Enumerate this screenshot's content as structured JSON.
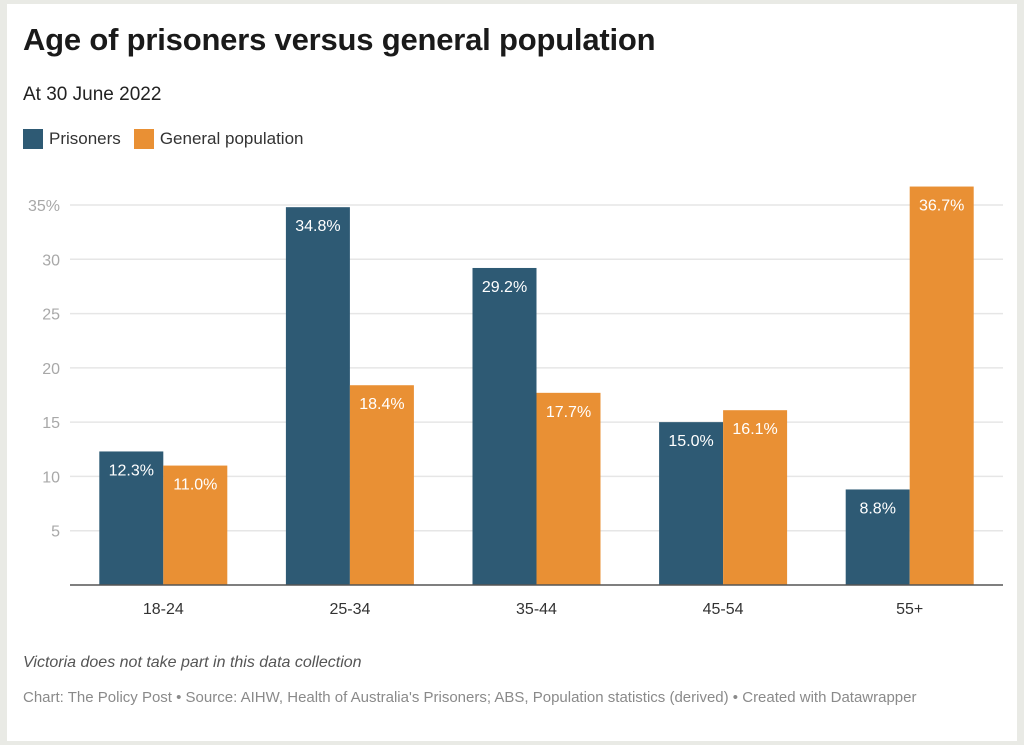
{
  "chart_data": {
    "type": "bar",
    "title": "Age of prisoners versus general population",
    "subtitle": "At 30 June 2022",
    "categories": [
      "18-24",
      "25-34",
      "35-44",
      "45-54",
      "55+"
    ],
    "series": [
      {
        "name": "Prisoners",
        "color": "#2e5a74",
        "values": [
          12.3,
          34.8,
          29.2,
          15.0,
          8.8
        ],
        "labels": [
          "12.3%",
          "34.8%",
          "29.2%",
          "15.0%",
          "8.8%"
        ]
      },
      {
        "name": "General population",
        "color": "#e99034",
        "values": [
          11.0,
          18.4,
          17.7,
          16.1,
          36.7
        ],
        "labels": [
          "11.0%",
          "18.4%",
          "17.7%",
          "16.1%",
          "36.7%"
        ]
      }
    ],
    "xlabel": "",
    "ylabel": "",
    "ylim": [
      0,
      35
    ],
    "yticks": [
      5,
      10,
      15,
      20,
      25,
      30,
      35
    ],
    "ytick_labels": [
      "5",
      "10",
      "15",
      "20",
      "25",
      "30",
      "35%"
    ],
    "grid": true,
    "legend_position": "top-left",
    "note": "Victoria does not take part in this data collection",
    "source": "Chart: The Policy Post • Source: AIHW, Health of Australia's Prisoners; ABS, Population statistics (derived) • Created with Datawrapper"
  }
}
